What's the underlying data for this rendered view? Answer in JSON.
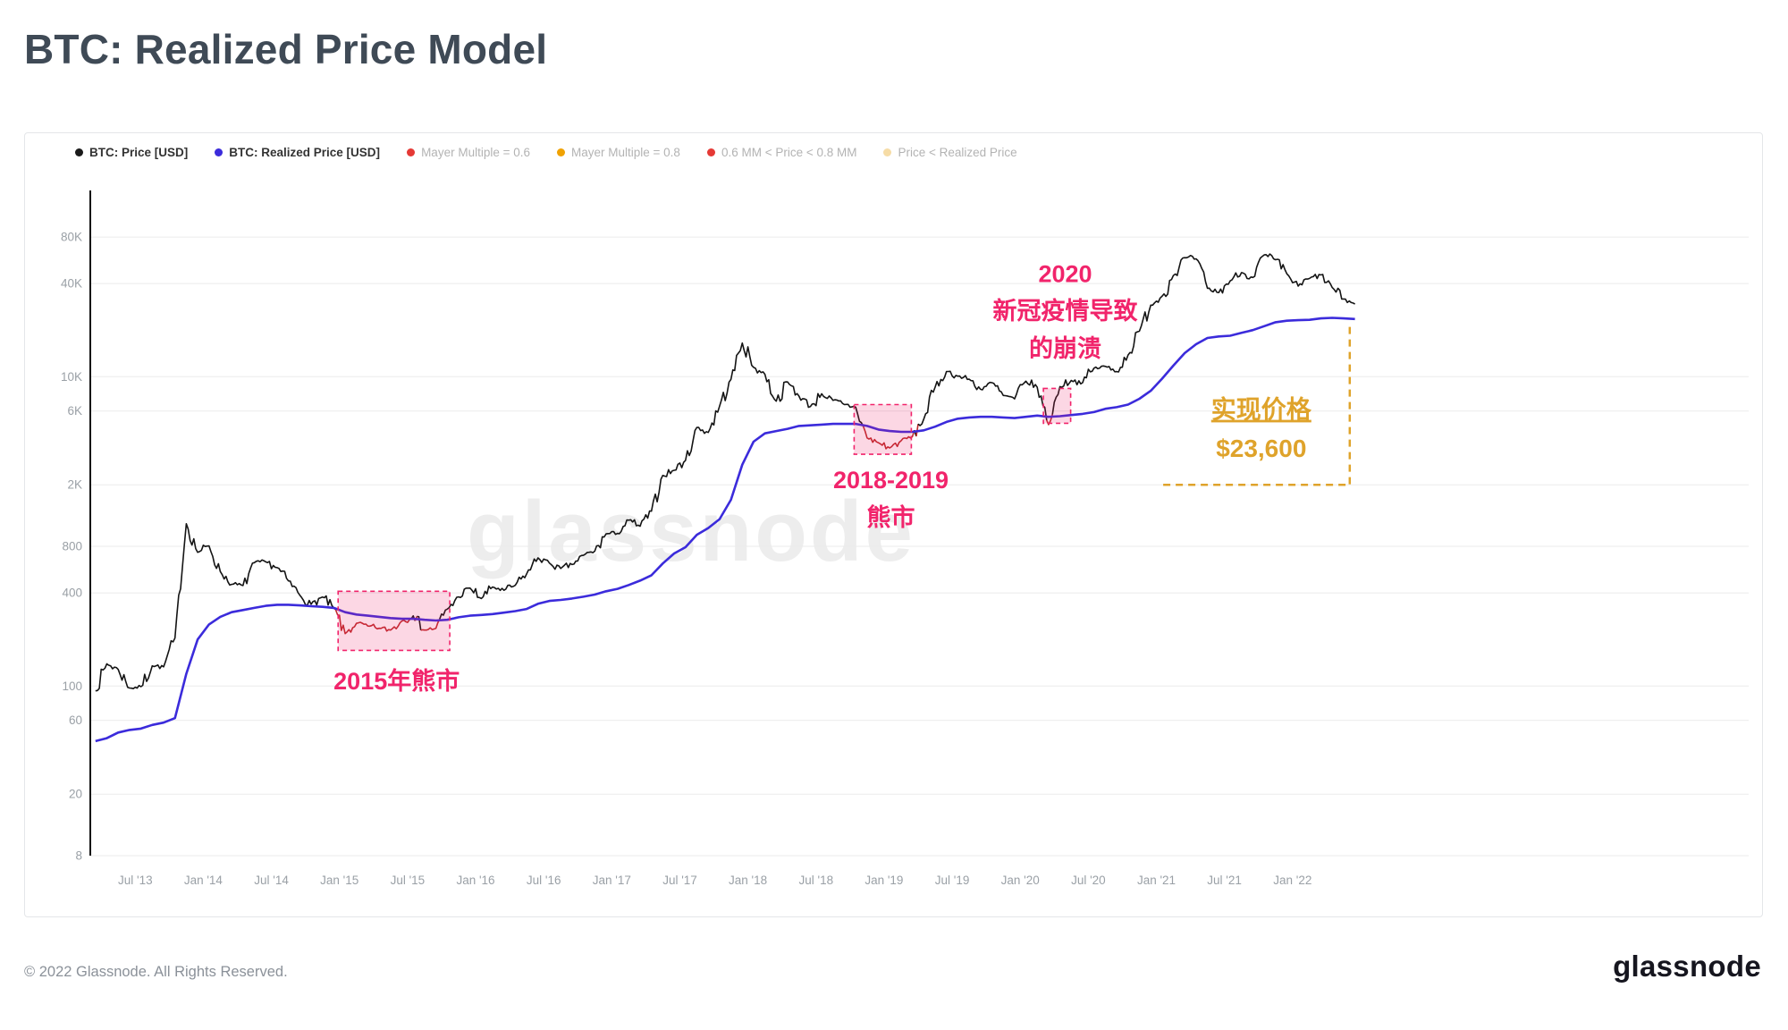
{
  "header": {
    "title": "BTC: Realized Price Model"
  },
  "legend": {
    "items": [
      {
        "label": "BTC: Price [USD]",
        "color": "#1a1a1a",
        "active": true
      },
      {
        "label": "BTC: Realized Price [USD]",
        "color": "#3b2bdb",
        "active": true
      },
      {
        "label": "Mayer Multiple = 0.6",
        "color": "#e53935",
        "active": false
      },
      {
        "label": "Mayer Multiple = 0.8",
        "color": "#f0a202",
        "active": false
      },
      {
        "label": "0.6 MM < Price < 0.8 MM",
        "color": "#e53935",
        "active": false
      },
      {
        "label": "Price < Realized Price",
        "color": "#f6dca6",
        "active": false
      }
    ]
  },
  "watermark": "glassnode",
  "footer": {
    "copyright": "© 2022 Glassnode. All Rights Reserved.",
    "logo_text": "glassnode"
  },
  "chart_data": {
    "type": "line",
    "title": "BTC: Realized Price Model",
    "xlabel": "",
    "ylabel": "",
    "y_scale": "log",
    "grid": "horizontal",
    "ylim": [
      8,
      160000
    ],
    "x_domain": [
      2013.17,
      2025.35
    ],
    "x_axis": {
      "ticks": [
        {
          "label": "Jul '13",
          "value": 2013.5
        },
        {
          "label": "Jan '14",
          "value": 2014.0
        },
        {
          "label": "Jul '14",
          "value": 2014.5
        },
        {
          "label": "Jan '15",
          "value": 2015.0
        },
        {
          "label": "Jul '15",
          "value": 2015.5
        },
        {
          "label": "Jan '16",
          "value": 2016.0
        },
        {
          "label": "Jul '16",
          "value": 2016.5
        },
        {
          "label": "Jan '17",
          "value": 2017.0
        },
        {
          "label": "Jul '17",
          "value": 2017.5
        },
        {
          "label": "Jan '18",
          "value": 2018.0
        },
        {
          "label": "Jul '18",
          "value": 2018.5
        },
        {
          "label": "Jan '19",
          "value": 2019.0
        },
        {
          "label": "Jul '19",
          "value": 2019.5
        },
        {
          "label": "Jan '20",
          "value": 2020.0
        },
        {
          "label": "Jul '20",
          "value": 2020.5
        },
        {
          "label": "Jan '21",
          "value": 2021.0
        },
        {
          "label": "Jul '21",
          "value": 2021.5
        },
        {
          "label": "Jan '22",
          "value": 2022.0
        }
      ]
    },
    "y_axis": {
      "ticks": [
        {
          "label": "80K",
          "value": 80000
        },
        {
          "label": "40K",
          "value": 40000
        },
        {
          "label": "10K",
          "value": 10000
        },
        {
          "label": "6K",
          "value": 6000
        },
        {
          "label": "2K",
          "value": 2000
        },
        {
          "label": "800",
          "value": 800
        },
        {
          "label": "400",
          "value": 400
        },
        {
          "label": "100",
          "value": 100
        },
        {
          "label": "60",
          "value": 60
        },
        {
          "label": "20",
          "value": 20
        },
        {
          "label": "8",
          "value": 8
        }
      ]
    },
    "series": [
      {
        "name": "BTC: Price [USD]",
        "color": "#141414",
        "below_realized_color": "#bf2a2a",
        "x_unit": "month",
        "start_month": "2013-03",
        "values": [
          93,
          139,
          128,
          97,
          99,
          135,
          133,
          204,
          1120,
          732,
          806,
          550,
          454,
          446,
          627,
          635,
          583,
          478,
          387,
          338,
          376,
          319,
          218,
          254,
          244,
          236,
          230,
          263,
          284,
          230,
          236,
          314,
          377,
          430,
          368,
          437,
          416,
          448,
          531,
          673,
          624,
          575,
          610,
          700,
          745,
          963,
          970,
          1180,
          1080,
          1350,
          2300,
          2480,
          2875,
          4700,
          4360,
          6450,
          9600,
          16500,
          11500,
          10360,
          6940,
          9240,
          7490,
          6400,
          7750,
          7030,
          6600,
          6340,
          4020,
          3740,
          3460,
          3850,
          4100,
          5320,
          8560,
          10800,
          10080,
          9630,
          8290,
          9150,
          7560,
          7190,
          9350,
          8550,
          4900,
          8620,
          9450,
          9140,
          11350,
          11650,
          10780,
          13800,
          19700,
          29000,
          33100,
          45100,
          58800,
          57800,
          37300,
          35000,
          41600,
          47100,
          43800,
          61300,
          57000,
          46200,
          38500,
          43200,
          45500,
          37700,
          31800,
          29500
        ]
      },
      {
        "name": "BTC: Realized Price [USD]",
        "color": "#3b2bdb",
        "x_unit": "month",
        "start_month": "2013-03",
        "values": [
          44,
          46,
          50,
          52,
          53,
          56,
          58,
          62,
          120,
          200,
          250,
          280,
          300,
          310,
          320,
          330,
          335,
          335,
          332,
          328,
          325,
          320,
          300,
          290,
          285,
          280,
          275,
          272,
          272,
          268,
          265,
          268,
          278,
          285,
          288,
          292,
          298,
          305,
          315,
          340,
          355,
          360,
          368,
          378,
          390,
          410,
          425,
          450,
          480,
          520,
          620,
          720,
          790,
          950,
          1050,
          1200,
          1600,
          2700,
          3800,
          4300,
          4450,
          4600,
          4800,
          4850,
          4900,
          4950,
          4950,
          4950,
          4800,
          4550,
          4450,
          4400,
          4400,
          4500,
          4750,
          5100,
          5350,
          5450,
          5500,
          5500,
          5450,
          5400,
          5500,
          5600,
          5500,
          5550,
          5650,
          5750,
          5900,
          6200,
          6350,
          6600,
          7200,
          8100,
          9700,
          11800,
          14200,
          16200,
          17800,
          18200,
          18400,
          19200,
          20000,
          21200,
          22500,
          23000,
          23200,
          23300,
          23800,
          24000,
          23800,
          23600
        ]
      }
    ],
    "annotations": [
      {
        "name": "bear-market-2015",
        "color": "#f1246b",
        "box": {
          "x0": 2014.99,
          "x1": 2015.81,
          "y0": 170,
          "y1": 410
        },
        "label_lines": [
          "2015年熊市"
        ],
        "label_at": {
          "x": 2015.42,
          "y": 95
        },
        "font_size": 27
      },
      {
        "name": "bear-market-2018-2019",
        "color": "#f1246b",
        "box": {
          "x0": 2018.78,
          "x1": 2019.2,
          "y0": 3150,
          "y1": 6600
        },
        "label_lines": [
          "2018-2019",
          "熊市"
        ],
        "label_at": {
          "x": 2019.05,
          "y": 1900
        },
        "font_size": 27
      },
      {
        "name": "covid-crash-2020",
        "color": "#f1246b",
        "box": {
          "x0": 2020.17,
          "x1": 2020.37,
          "y0": 5000,
          "y1": 8400
        },
        "label_lines": [
          "2020",
          "新冠疫情导致",
          "的崩溃"
        ],
        "label_at": {
          "x": 2020.33,
          "y": 41000
        },
        "font_size": 27
      },
      {
        "name": "realized-price-callout",
        "color": "#dfa32b",
        "label_lines": [
          "实现价格",
          "$23,600"
        ],
        "underline_first": true,
        "label_at": {
          "x": 2021.77,
          "y": 5400
        },
        "font_size": 28,
        "dash_h": {
          "x0": 2021.05,
          "x1": 2022.42,
          "y": 2000
        },
        "dash_v": {
          "x": 2022.42,
          "y0": 21000,
          "y1": 2000
        }
      }
    ]
  }
}
